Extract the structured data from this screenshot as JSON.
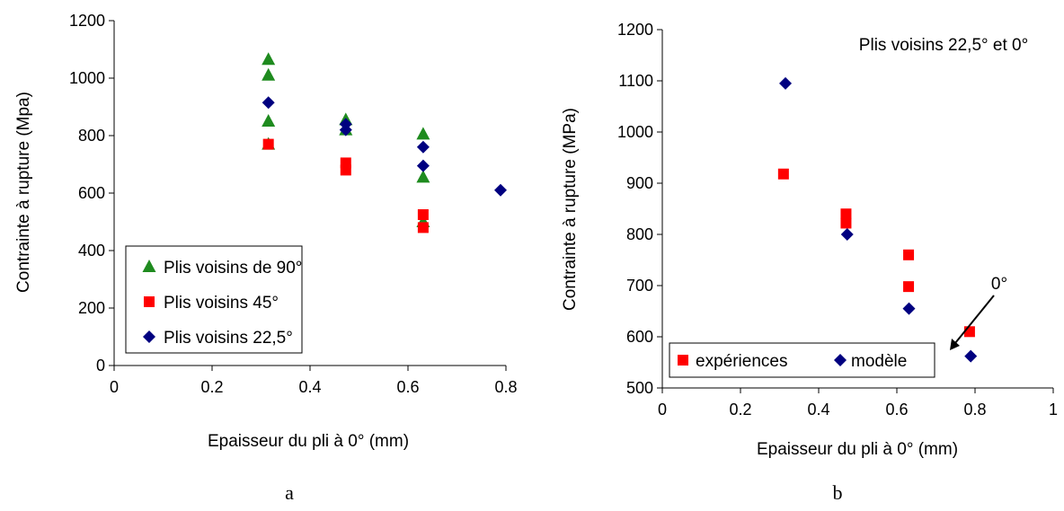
{
  "colors": {
    "green": "#1f8b1f",
    "red": "#ff0000",
    "navy": "#000080",
    "axis": "#000000"
  },
  "chart_data": [
    {
      "panel": "a",
      "type": "scatter",
      "xlabel": "Epaisseur du pli à 0° (mm)",
      "ylabel": "Contrainte à rupture (Mpa)",
      "xlim": [
        0,
        0.8
      ],
      "ylim": [
        0,
        1200
      ],
      "x_ticks": [
        "0",
        "0.2",
        "0.4",
        "0.6",
        "0.8"
      ],
      "y_ticks": [
        "0",
        "200",
        "400",
        "600",
        "800",
        "1000",
        "1200"
      ],
      "legend_position": "bottom-left",
      "series": [
        {
          "name": "Plis voisins de 90°",
          "marker": "triangle",
          "color": "#1f8b1f",
          "points": [
            [
              0.315,
              1065
            ],
            [
              0.315,
              1010
            ],
            [
              0.315,
              850
            ],
            [
              0.315,
              770
            ],
            [
              0.473,
              855
            ],
            [
              0.473,
              820
            ],
            [
              0.631,
              805
            ],
            [
              0.631,
              655
            ],
            [
              0.631,
              500
            ]
          ]
        },
        {
          "name": "Plis voisins 45°",
          "marker": "square",
          "color": "#ff0000",
          "points": [
            [
              0.315,
              770
            ],
            [
              0.473,
              705
            ],
            [
              0.473,
              680
            ],
            [
              0.631,
              525
            ],
            [
              0.631,
              480
            ]
          ]
        },
        {
          "name": "Plis voisins 22,5°",
          "marker": "diamond",
          "color": "#000080",
          "points": [
            [
              0.315,
              915
            ],
            [
              0.473,
              840
            ],
            [
              0.473,
              820
            ],
            [
              0.631,
              760
            ],
            [
              0.631,
              695
            ],
            [
              0.789,
              610
            ]
          ]
        }
      ]
    },
    {
      "panel": "b",
      "type": "scatter",
      "title": "Plis voisins 22,5° et 0°",
      "xlabel": "Epaisseur du pli à 0° (mm)",
      "ylabel": "Contrainte à rupture (MPa)",
      "xlim": [
        0,
        1
      ],
      "ylim": [
        500,
        1200
      ],
      "x_ticks": [
        "0",
        "0.2",
        "0.4",
        "0.6",
        "0.8",
        "1"
      ],
      "y_ticks": [
        "500",
        "600",
        "700",
        "800",
        "900",
        "1000",
        "1100",
        "1200"
      ],
      "legend_position": "bottom-left",
      "annotation": {
        "text": "0°",
        "x": 0.79,
        "y": 560
      },
      "series": [
        {
          "name": "expériences",
          "marker": "square",
          "color": "#ff0000",
          "points": [
            [
              0.31,
              918
            ],
            [
              0.47,
              840
            ],
            [
              0.47,
              822
            ],
            [
              0.63,
              760
            ],
            [
              0.63,
              698
            ],
            [
              0.786,
              610
            ]
          ]
        },
        {
          "name": "modèle",
          "marker": "diamond",
          "color": "#000080",
          "points": [
            [
              0.315,
              1095
            ],
            [
              0.473,
              800
            ],
            [
              0.631,
              655
            ],
            [
              0.789,
              562
            ]
          ]
        }
      ]
    }
  ]
}
